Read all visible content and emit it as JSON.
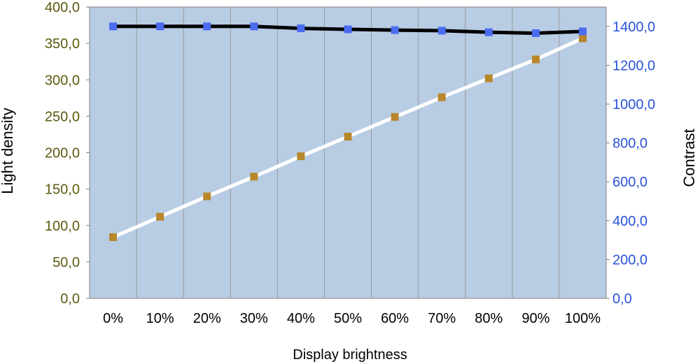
{
  "chart_data": {
    "type": "line",
    "title": "",
    "xlabel": "Display brightness",
    "ylabel_left": "Light density",
    "ylabel_right": "Contrast",
    "categories": [
      "0%",
      "10%",
      "20%",
      "30%",
      "40%",
      "50%",
      "60%",
      "70%",
      "80%",
      "90%",
      "100%"
    ],
    "ylim_left": [
      0,
      400
    ],
    "ylim_right": [
      0,
      1500
    ],
    "left_ticks": [
      "0,0",
      "50,0",
      "100,0",
      "150,0",
      "200,0",
      "250,0",
      "300,0",
      "350,0",
      "400,0"
    ],
    "right_ticks": [
      "0,0",
      "200,0",
      "400,0",
      "600,0",
      "800,0",
      "1000,0",
      "1200,0",
      "1400,0"
    ],
    "grid": "vertical",
    "legend": "none",
    "series": [
      {
        "axis": "left",
        "values": [
          84,
          112,
          140,
          167,
          195,
          222,
          249,
          276,
          302,
          328,
          357
        ],
        "line_color": "#ffffff",
        "marker_color": "#b8872a"
      },
      {
        "axis": "right",
        "values": [
          1400,
          1400,
          1400,
          1400,
          1390,
          1385,
          1381,
          1378,
          1370,
          1365,
          1374
        ],
        "line_color": "#000000",
        "marker_color": "#4a6cf0"
      }
    ],
    "colors": {
      "plot_background": "#b8cce4",
      "gridline": "#999999",
      "left_tick_text": "#5e5a10",
      "right_tick_text": "#2a52d8",
      "axis_title_text": "#000000"
    }
  }
}
